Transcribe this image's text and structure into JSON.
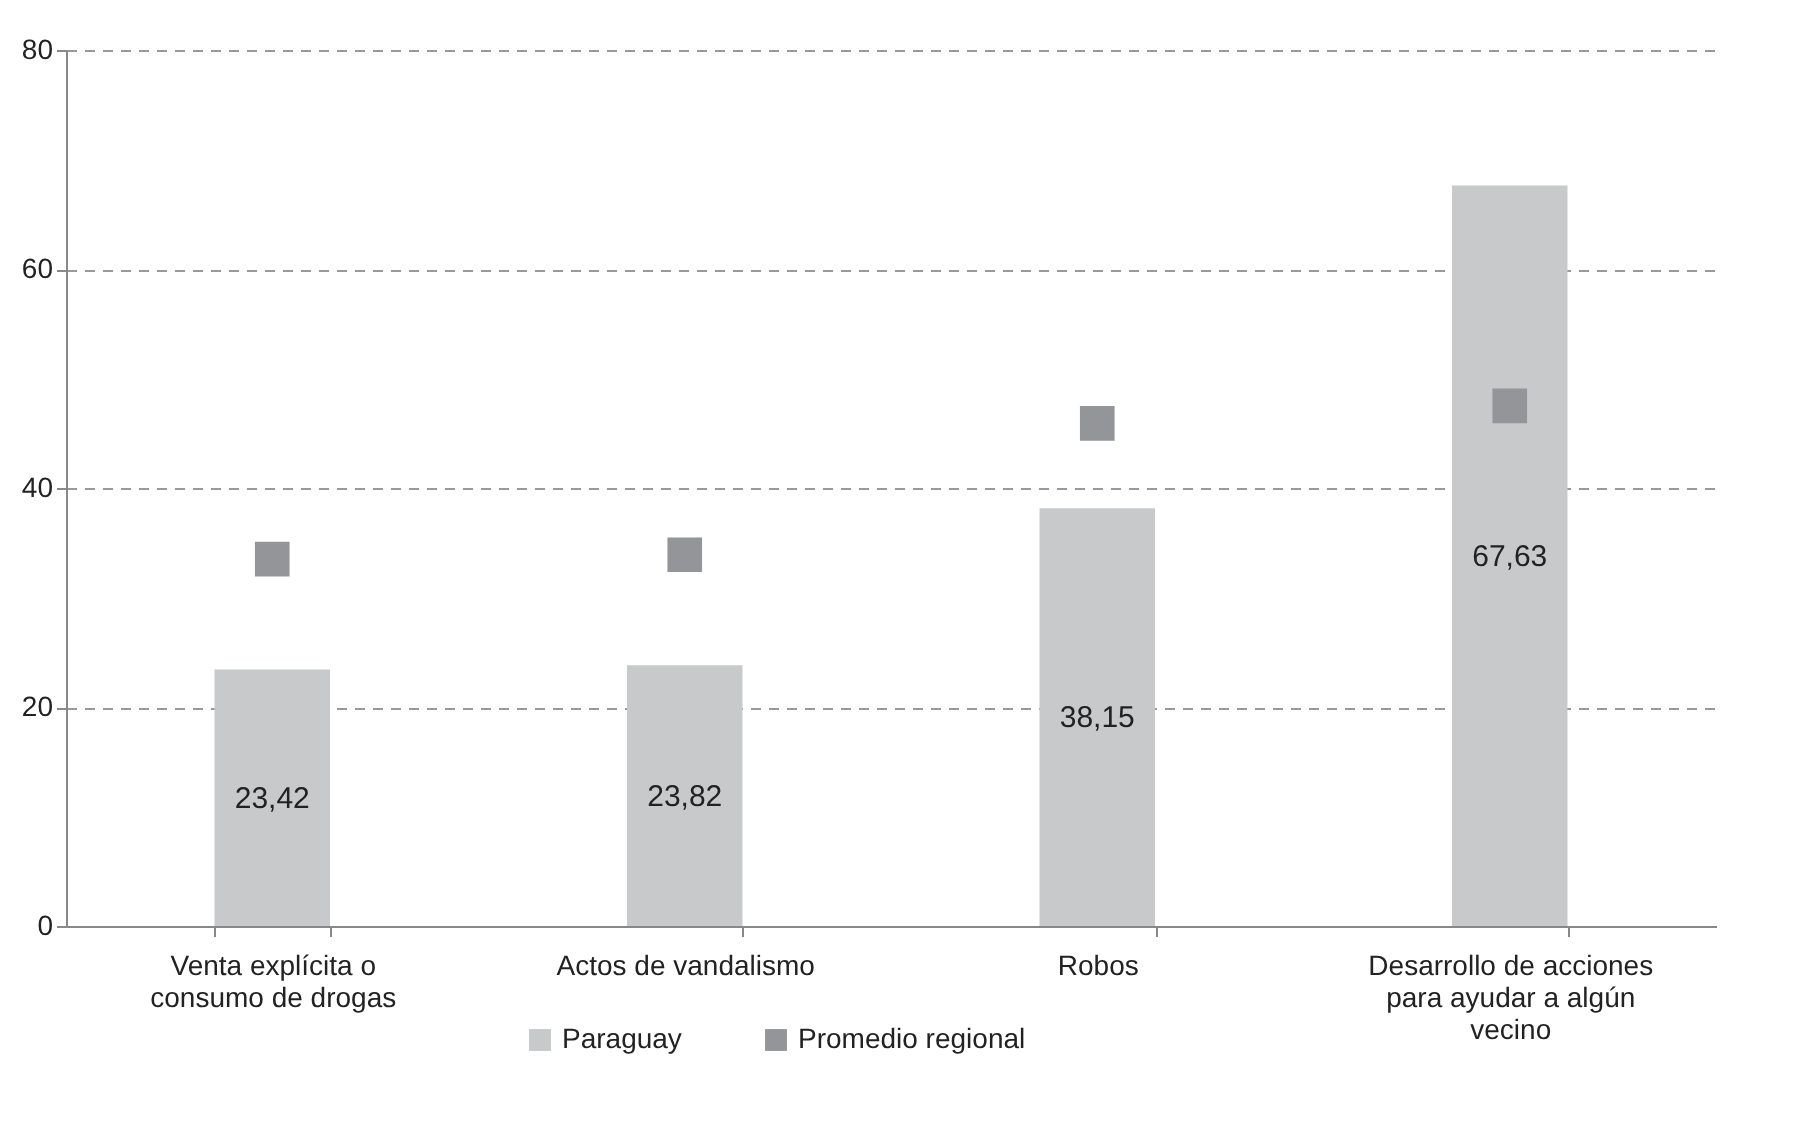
{
  "chart_data": {
    "type": "bar",
    "categories": [
      "Venta explícita o consumo de drogas",
      "Actos de vandalismo",
      "Robos",
      "Desarrollo de acciones para ayudar a algún vecino"
    ],
    "series": [
      {
        "name": "Paraguay",
        "type": "bar",
        "color": "#c8c9cb",
        "values": [
          23.42,
          23.82,
          38.15,
          67.63
        ],
        "value_labels": [
          "23,42",
          "23,82",
          "38,15",
          "67,63"
        ]
      },
      {
        "name": "Promedio regional",
        "type": "scatter",
        "color": "#939598",
        "values": [
          33.5,
          33.9,
          45.9,
          47.5
        ]
      }
    ],
    "marker": "square",
    "ylim": [
      0,
      80
    ],
    "yticks": [
      0,
      20,
      40,
      60,
      80
    ],
    "grid": "y",
    "legend": "bottom"
  }
}
